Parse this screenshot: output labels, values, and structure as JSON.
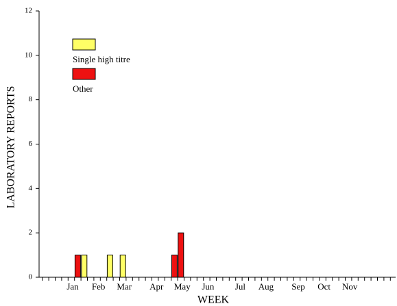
{
  "chart_data": {
    "type": "bar",
    "stacked": true,
    "x_label": "WEEK",
    "y_label": "LABORATORY REPORTS",
    "categories": [
      null,
      null,
      null,
      null,
      null,
      "Jan",
      null,
      null,
      null,
      "Feb",
      null,
      null,
      null,
      "Mar",
      null,
      null,
      null,
      null,
      "Apr",
      null,
      null,
      null,
      "May",
      null,
      null,
      null,
      "Jun",
      null,
      null,
      null,
      null,
      "Jul",
      null,
      null,
      null,
      "Aug",
      null,
      null,
      null,
      null,
      "Sep",
      null,
      null,
      null,
      "Oct",
      null,
      null,
      null,
      "Nov",
      null,
      null,
      null,
      null,
      null,
      null
    ],
    "series": [
      {
        "name": "Other",
        "color": "#ee1111",
        "values": [
          0,
          0,
          0,
          0,
          0,
          0,
          1,
          0,
          0,
          0,
          0,
          0,
          0,
          0,
          0,
          0,
          0,
          0,
          0,
          0,
          0,
          1,
          2,
          0,
          0,
          0,
          0,
          0,
          0,
          0,
          0,
          0,
          0,
          0,
          0,
          0,
          0,
          0,
          0,
          0,
          0,
          0,
          0,
          0,
          0,
          0,
          0,
          0,
          0,
          0,
          0,
          0,
          0,
          0,
          0
        ]
      },
      {
        "name": "Single high titre",
        "color": "#ffff66",
        "values": [
          0,
          0,
          0,
          0,
          0,
          0,
          0,
          1,
          0,
          0,
          0,
          1,
          0,
          1,
          0,
          0,
          0,
          0,
          0,
          0,
          0,
          0,
          0,
          0,
          0,
          0,
          0,
          0,
          0,
          0,
          0,
          0,
          0,
          0,
          0,
          0,
          0,
          0,
          0,
          0,
          0,
          0,
          0,
          0,
          0,
          0,
          0,
          0,
          0,
          0,
          0,
          0,
          0,
          0,
          0
        ]
      }
    ],
    "ylim": [
      0,
      12
    ],
    "yticks": [
      0,
      2,
      4,
      6,
      8,
      10,
      12
    ],
    "legend": "upper left"
  }
}
